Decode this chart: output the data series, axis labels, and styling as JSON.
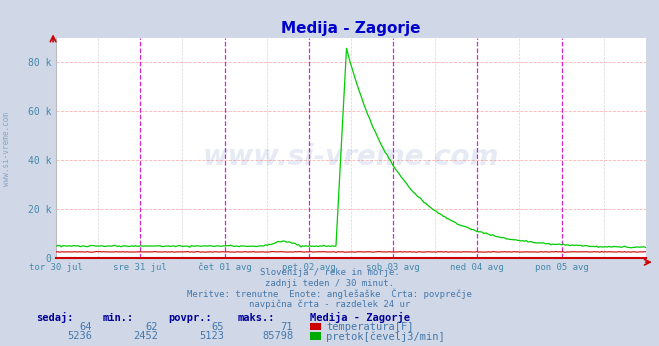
{
  "title": "Medija - Zagorje",
  "title_color": "#0000cc",
  "bg_color": "#d0d8e8",
  "plot_bg_color": "#ffffff",
  "grid_color_h": "#ffaaaa",
  "magenta_vline_color": "#cc00cc",
  "dashed_vline_color": "#aaaaaa",
  "xlabel_color": "#4488aa",
  "ylabel_color": "#4488aa",
  "x_tick_labels": [
    "tor 30 jul",
    "sre 31 jul",
    "čet 01 avg",
    "pet 02 avg",
    "sob 03 avg",
    "ned 04 avg",
    "pon 05 avg"
  ],
  "ylim": [
    0,
    90000
  ],
  "yticks": [
    0,
    20000,
    40000,
    60000,
    80000
  ],
  "ytick_labels": [
    "0",
    "20 k",
    "40 k",
    "60 k",
    "80 k"
  ],
  "n_points": 336,
  "watermark": "www.si-vreme.com",
  "watermark_color": "#3355aa",
  "watermark_alpha": 0.12,
  "side_label": "www.si-vreme.com",
  "footer_lines": [
    "Slovenija / reke in morje.",
    "zadnji teden / 30 minut.",
    "Meritve: trenutne  Enote: anglešaške  Črta: povprečje",
    "navpična črta - razdelek 24 ur"
  ],
  "footer_color": "#4477aa",
  "legend_title": "Medija - Zagorje",
  "legend_title_color": "#000099",
  "legend_items": [
    {
      "label": "temperatura[F]",
      "color": "#cc0000"
    },
    {
      "label": "pretok[čevelj3/min]",
      "color": "#00aa00"
    }
  ],
  "stat_headers": [
    "sedaj:",
    "min.:",
    "povpr.:",
    "maks.:"
  ],
  "stat_header_color": "#000099",
  "stat_values_temp": [
    "64",
    "62",
    "65",
    "71"
  ],
  "stat_values_flow": [
    "5236",
    "2452",
    "5123",
    "85798"
  ],
  "stat_value_color": "#4477aa",
  "temp_line_color": "#cc0000",
  "flow_line_color": "#00cc00",
  "bottom_axis_color": "#cc0000",
  "arrow_color": "#cc0000"
}
